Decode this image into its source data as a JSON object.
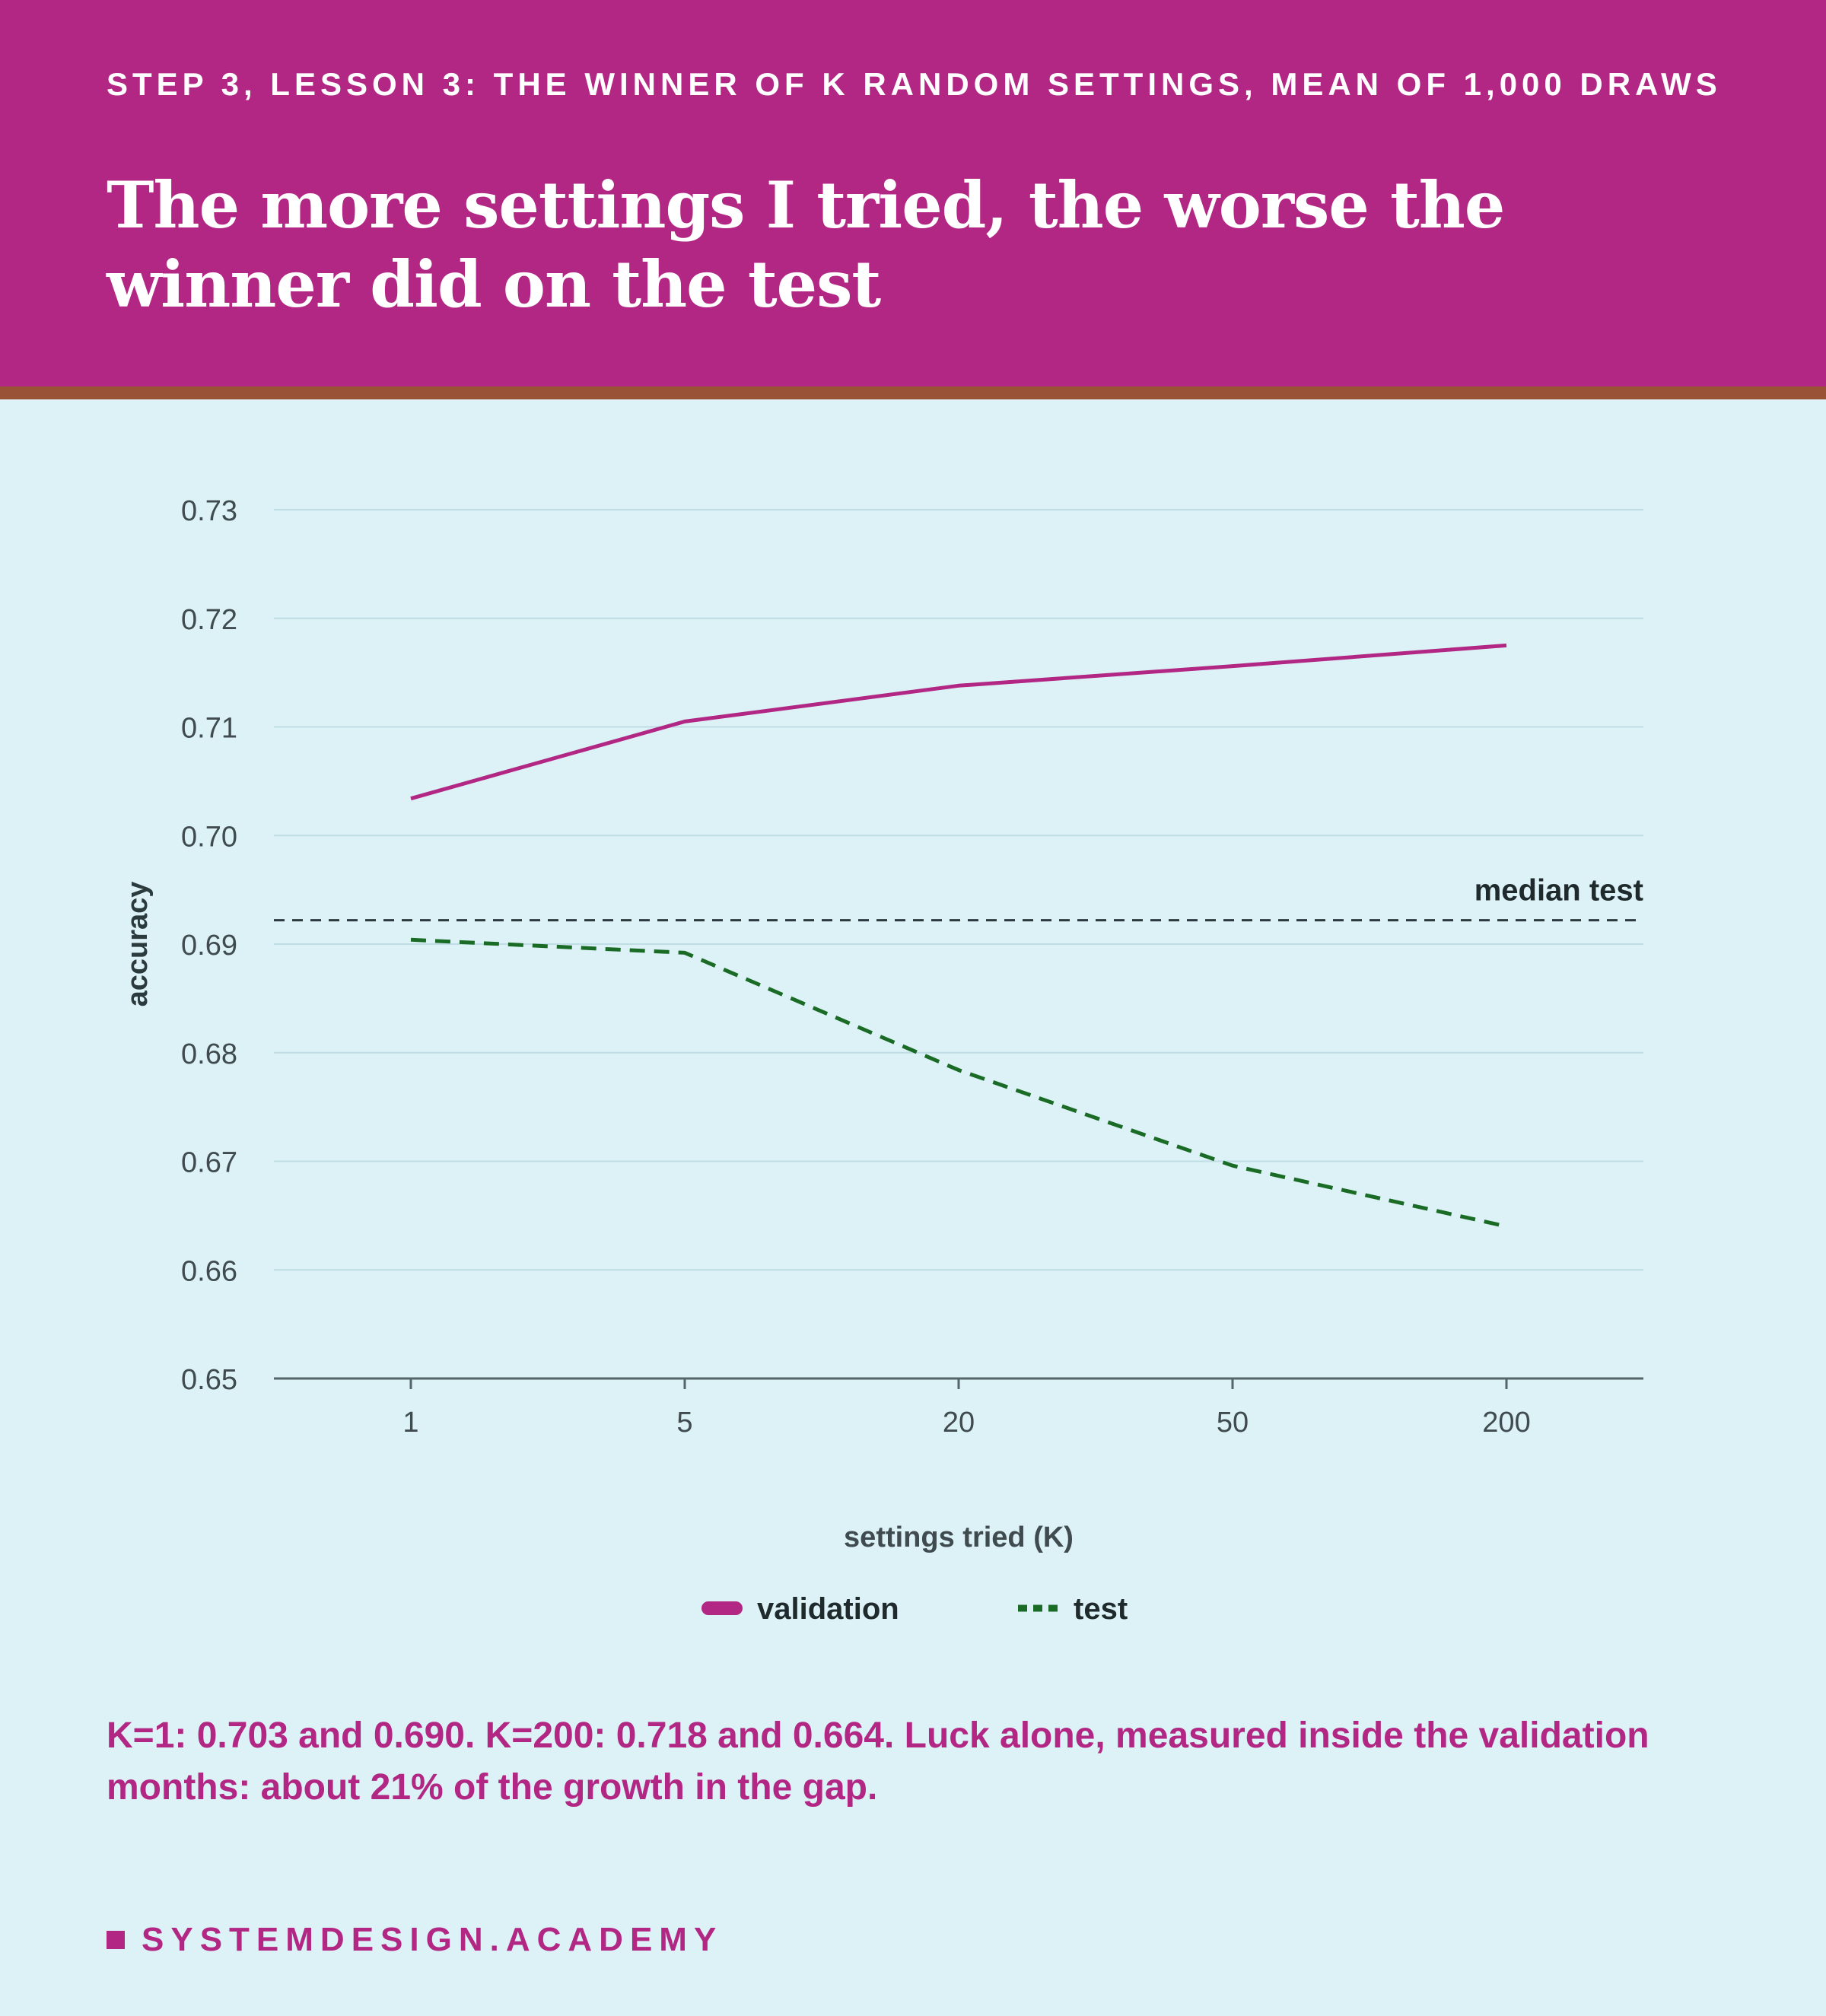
{
  "header": {
    "eyebrow": "STEP 3, LESSON 3: THE WINNER OF K RANDOM SETTINGS, MEAN OF 1,000 DRAWS",
    "title": "The more settings I tried, the worse the winner did on the test"
  },
  "chart_data": {
    "type": "line",
    "categories": [
      "1",
      "5",
      "20",
      "50",
      "200"
    ],
    "xlabel": "settings tried (K)",
    "ylabel": "accuracy",
    "ylim": [
      0.65,
      0.73
    ],
    "yticks": [
      "0.65",
      "0.66",
      "0.67",
      "0.68",
      "0.69",
      "0.70",
      "0.71",
      "0.72",
      "0.73"
    ],
    "grid": true,
    "legend_position": "bottom-center",
    "series": [
      {
        "name": "validation",
        "values": [
          0.7034,
          0.7105,
          0.7138,
          0.7156,
          0.7175
        ],
        "color": "#b22784",
        "style": "solid"
      },
      {
        "name": "test",
        "values": [
          0.6904,
          0.6892,
          0.6784,
          0.6696,
          0.664
        ],
        "color": "#1a6b25",
        "style": "dashed"
      }
    ],
    "reference_line": {
      "label": "median test",
      "value": 0.6922,
      "color": "#2b3a3d",
      "style": "dashed"
    }
  },
  "caption": "K=1: 0.703 and 0.690. K=200: 0.718 and 0.664. Luck alone, measured inside the validation months: about 21% of the growth in the gap.",
  "footer": {
    "brand": "SYSTEMDESIGN.ACADEMY"
  },
  "colors": {
    "header_bg": "#b22784",
    "header_rule": "#9a5236",
    "page_bg": "#dcf2f6",
    "validation": "#b22784",
    "test": "#1a6b25"
  }
}
